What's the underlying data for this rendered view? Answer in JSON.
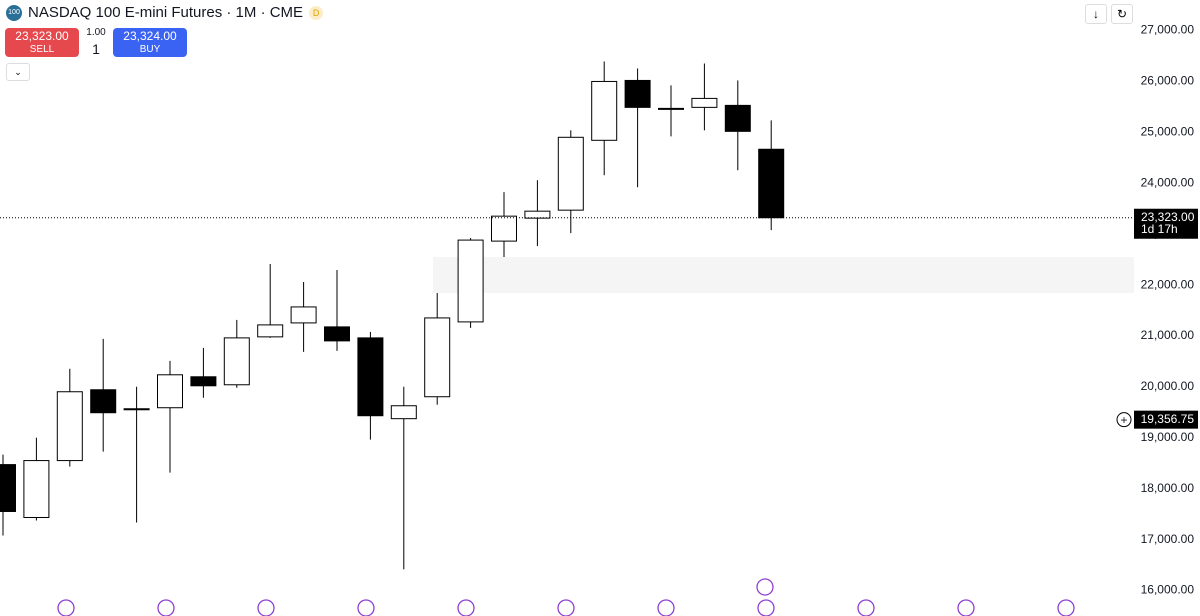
{
  "header": {
    "symbol_badge": "100",
    "title": "NASDAQ 100 E-mini Futures · 1M · CME",
    "badge": "D"
  },
  "trade": {
    "sell_price": "23,323.00",
    "sell_label": "SELL",
    "qty_step": "1.00",
    "qty": "1",
    "buy_price": "23,324.00",
    "buy_label": "BUY"
  },
  "chart_data": {
    "type": "candlestick",
    "up_color": "#ffffff",
    "down_color": "#000000",
    "open": [
      18474,
      17435,
      18553,
      19944,
      19571,
      19591,
      20199,
      20042,
      20983,
      21257,
      21179,
      20963,
      19376,
      19807,
      21277,
      22864,
      23315,
      23472,
      24844,
      26020,
      25471,
      25491,
      25530,
      24668
    ],
    "high": [
      18670,
      19003,
      20356,
      20944,
      20003,
      20512,
      20767,
      21316,
      22414,
      22061,
      22296,
      21081,
      20003,
      21845,
      22923,
      23825,
      24060,
      25040,
      26392,
      26255,
      25922,
      26353,
      26020,
      25236
    ],
    "low": [
      17082,
      17376,
      18435,
      18729,
      17337,
      18317,
      19787,
      19983,
      20963,
      20689,
      20708,
      18964,
      16416,
      19650,
      21159,
      22551,
      22766,
      23021,
      24158,
      23923,
      24922,
      25040,
      24256,
      23080
    ],
    "close": [
      17553,
      18553,
      19905,
      19493,
      19551,
      20238,
      20022,
      20963,
      21218,
      21571,
      20904,
      19434,
      19630,
      21355,
      22884,
      23354,
      23452,
      24903,
      26000,
      25491,
      25470,
      25667,
      25020,
      23323
    ],
    "zone": [
      21845,
      22551
    ],
    "ylim": [
      15500,
      27600
    ],
    "yticks": [
      {
        "value": 16000,
        "label": "16,000.00"
      },
      {
        "value": 17000,
        "label": "17,000.00"
      },
      {
        "value": 18000,
        "label": "18,000.00"
      },
      {
        "value": 19000,
        "label": "19,000.00"
      },
      {
        "value": 20000,
        "label": "20,000.00"
      },
      {
        "value": 21000,
        "label": "21,000.00"
      },
      {
        "value": 22000,
        "label": "22,000.00"
      },
      {
        "value": 23000,
        "label": "23,000.00"
      },
      {
        "value": 24000,
        "label": "24,000.00"
      },
      {
        "value": 25000,
        "label": "25,000.00"
      },
      {
        "value": 26000,
        "label": "26,000.00"
      },
      {
        "value": 27000,
        "label": "27,000.00"
      }
    ],
    "last_price": {
      "value": 23323,
      "label": "23,323.00"
    },
    "countdown": "1d 17h",
    "crosshair": {
      "value": 19356.75,
      "label": "19,356.75"
    }
  }
}
